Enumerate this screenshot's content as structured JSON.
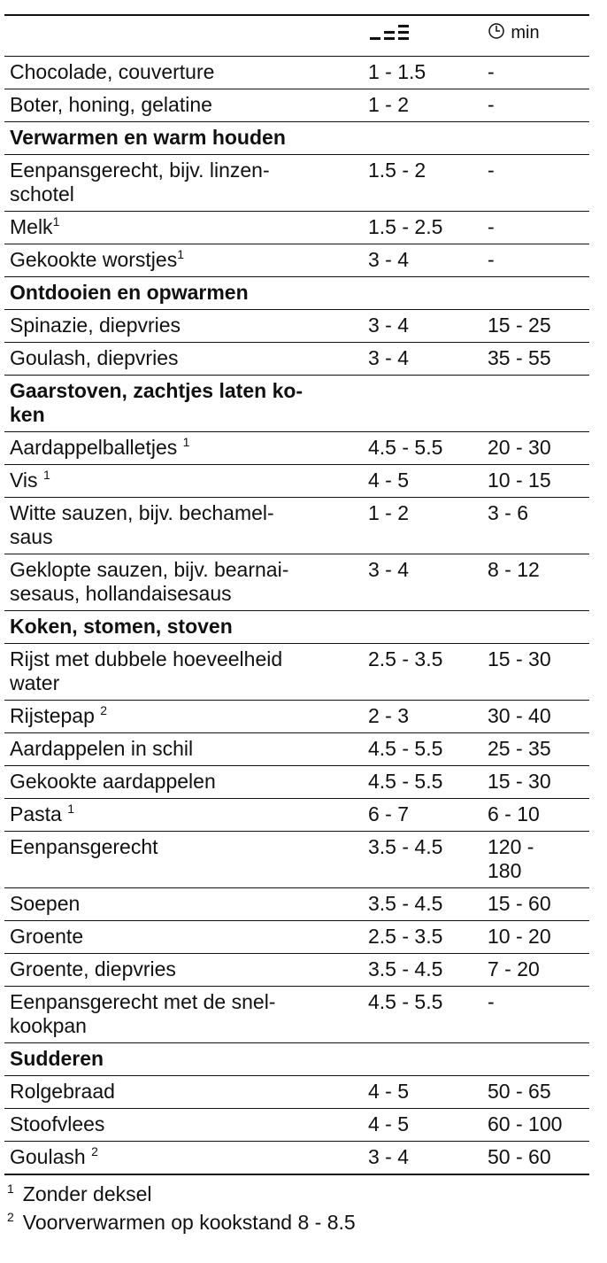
{
  "header": {
    "time_unit": "min"
  },
  "rows": [
    {
      "name": [
        "Chocolade, couverture"
      ],
      "level": [
        "1 - 1.5"
      ],
      "time": [
        "-"
      ]
    },
    {
      "name": [
        "Boter, honing, gelatine"
      ],
      "level": [
        "1 - 2"
      ],
      "time": [
        "-"
      ]
    },
    {
      "section": "Verwarmen en warm houden"
    },
    {
      "name": [
        "Eenpansgerecht, bijv. linzen-",
        "schotel"
      ],
      "level": [
        "1.5 - 2"
      ],
      "time": [
        "-"
      ]
    },
    {
      "name": [
        "Melk"
      ],
      "note": "1",
      "level": [
        "1.5 - 2.5"
      ],
      "time": [
        "-"
      ]
    },
    {
      "name": [
        "Gekookte worstjes"
      ],
      "note": "1",
      "level": [
        "3 - 4"
      ],
      "time": [
        "-"
      ]
    },
    {
      "section": "Ontdooien en opwarmen"
    },
    {
      "name": [
        "Spinazie, diepvries"
      ],
      "level": [
        "3 - 4"
      ],
      "time": [
        "15 - 25"
      ]
    },
    {
      "name": [
        "Goulash, diepvries"
      ],
      "level": [
        "3 - 4"
      ],
      "time": [
        "35 - 55"
      ]
    },
    {
      "section": [
        "Gaarstoven, zachtjes laten ko-",
        "ken"
      ]
    },
    {
      "name": [
        "Aardappelballetjes "
      ],
      "note": "1",
      "level": [
        "4.5 - 5.5"
      ],
      "time": [
        "20 - 30"
      ]
    },
    {
      "name": [
        "Vis "
      ],
      "note": "1",
      "level": [
        "4 - 5"
      ],
      "time": [
        "10 - 15"
      ]
    },
    {
      "name": [
        "Witte sauzen, bijv. bechamel-",
        "saus"
      ],
      "level": [
        "1 - 2"
      ],
      "time": [
        "3 - 6"
      ]
    },
    {
      "name": [
        "Geklopte sauzen, bijv. bearnai-",
        "sesaus, hollandaisesaus"
      ],
      "level": [
        "3 - 4"
      ],
      "time": [
        "8 - 12"
      ]
    },
    {
      "section": "Koken, stomen, stoven"
    },
    {
      "name": [
        "Rijst met dubbele hoeveelheid",
        "water"
      ],
      "level": [
        "2.5 - 3.5"
      ],
      "time": [
        "15 - 30"
      ]
    },
    {
      "name": [
        "Rijstepap "
      ],
      "note": "2",
      "level": [
        "2 - 3"
      ],
      "time": [
        "30 - 40"
      ]
    },
    {
      "name": [
        "Aardappelen in schil"
      ],
      "level": [
        "4.5 - 5.5"
      ],
      "time": [
        "25 - 35"
      ]
    },
    {
      "name": [
        "Gekookte aardappelen"
      ],
      "level": [
        "4.5 - 5.5"
      ],
      "time": [
        "15 - 30"
      ]
    },
    {
      "name": [
        "Pasta "
      ],
      "note": "1",
      "level": [
        "6 - 7"
      ],
      "time": [
        "6 - 10"
      ]
    },
    {
      "name": [
        "Eenpansgerecht"
      ],
      "level": [
        "3.5 - 4.5"
      ],
      "time": [
        "120 -",
        "180"
      ]
    },
    {
      "name": [
        "Soepen"
      ],
      "level": [
        "3.5 - 4.5"
      ],
      "time": [
        "15 - 60"
      ]
    },
    {
      "name": [
        "Groente"
      ],
      "level": [
        "2.5 - 3.5"
      ],
      "time": [
        "10 - 20"
      ]
    },
    {
      "name": [
        "Groente, diepvries"
      ],
      "level": [
        "3.5 - 4.5"
      ],
      "time": [
        "7 - 20"
      ]
    },
    {
      "name": [
        "Eenpansgerecht met de snel-",
        "kookpan"
      ],
      "level": [
        "4.5 - 5.5"
      ],
      "time": [
        "-"
      ]
    },
    {
      "section": "Sudderen"
    },
    {
      "name": [
        "Rolgebraad"
      ],
      "level": [
        "4 - 5"
      ],
      "time": [
        "50 - 65"
      ]
    },
    {
      "name": [
        "Stoofvlees"
      ],
      "level": [
        "4 - 5"
      ],
      "time": [
        "60 - 100"
      ]
    },
    {
      "name": [
        "Goulash "
      ],
      "note": "2",
      "level": [
        "3 - 4"
      ],
      "time": [
        "50 - 60"
      ]
    }
  ],
  "footnotes": [
    {
      "mark": "1",
      "text": "Zonder deksel"
    },
    {
      "mark": "2",
      "text": "Voorverwarmen op kookstand 8 - 8.5"
    }
  ]
}
